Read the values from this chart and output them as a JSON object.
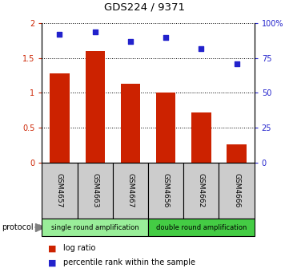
{
  "title": "GDS224 / 9371",
  "categories": [
    "GSM4657",
    "GSM4663",
    "GSM4667",
    "GSM4656",
    "GSM4662",
    "GSM4666"
  ],
  "log_ratio": [
    1.28,
    1.6,
    1.13,
    1.01,
    0.72,
    0.26
  ],
  "percentile_rank": [
    92,
    94,
    87,
    90,
    82,
    71
  ],
  "bar_color": "#cc2200",
  "dot_color": "#2222cc",
  "ylim_left": [
    0,
    2
  ],
  "ylim_right": [
    0,
    100
  ],
  "yticks_left": [
    0,
    0.5,
    1.0,
    1.5,
    2.0
  ],
  "ytick_labels_left": [
    "0",
    "0.5",
    "1",
    "1.5",
    "2"
  ],
  "yticks_right": [
    0,
    25,
    50,
    75,
    100
  ],
  "ytick_labels_right": [
    "0",
    "25",
    "50",
    "75",
    "100%"
  ],
  "group1_label": "single round amplification",
  "group2_label": "double round amplification",
  "protocol_label": "protocol",
  "legend_bar_label": "log ratio",
  "legend_dot_label": "percentile rank within the sample",
  "group1_color": "#99ee99",
  "group2_color": "#44cc44",
  "sample_box_color": "#cccccc",
  "background_color": "#ffffff"
}
